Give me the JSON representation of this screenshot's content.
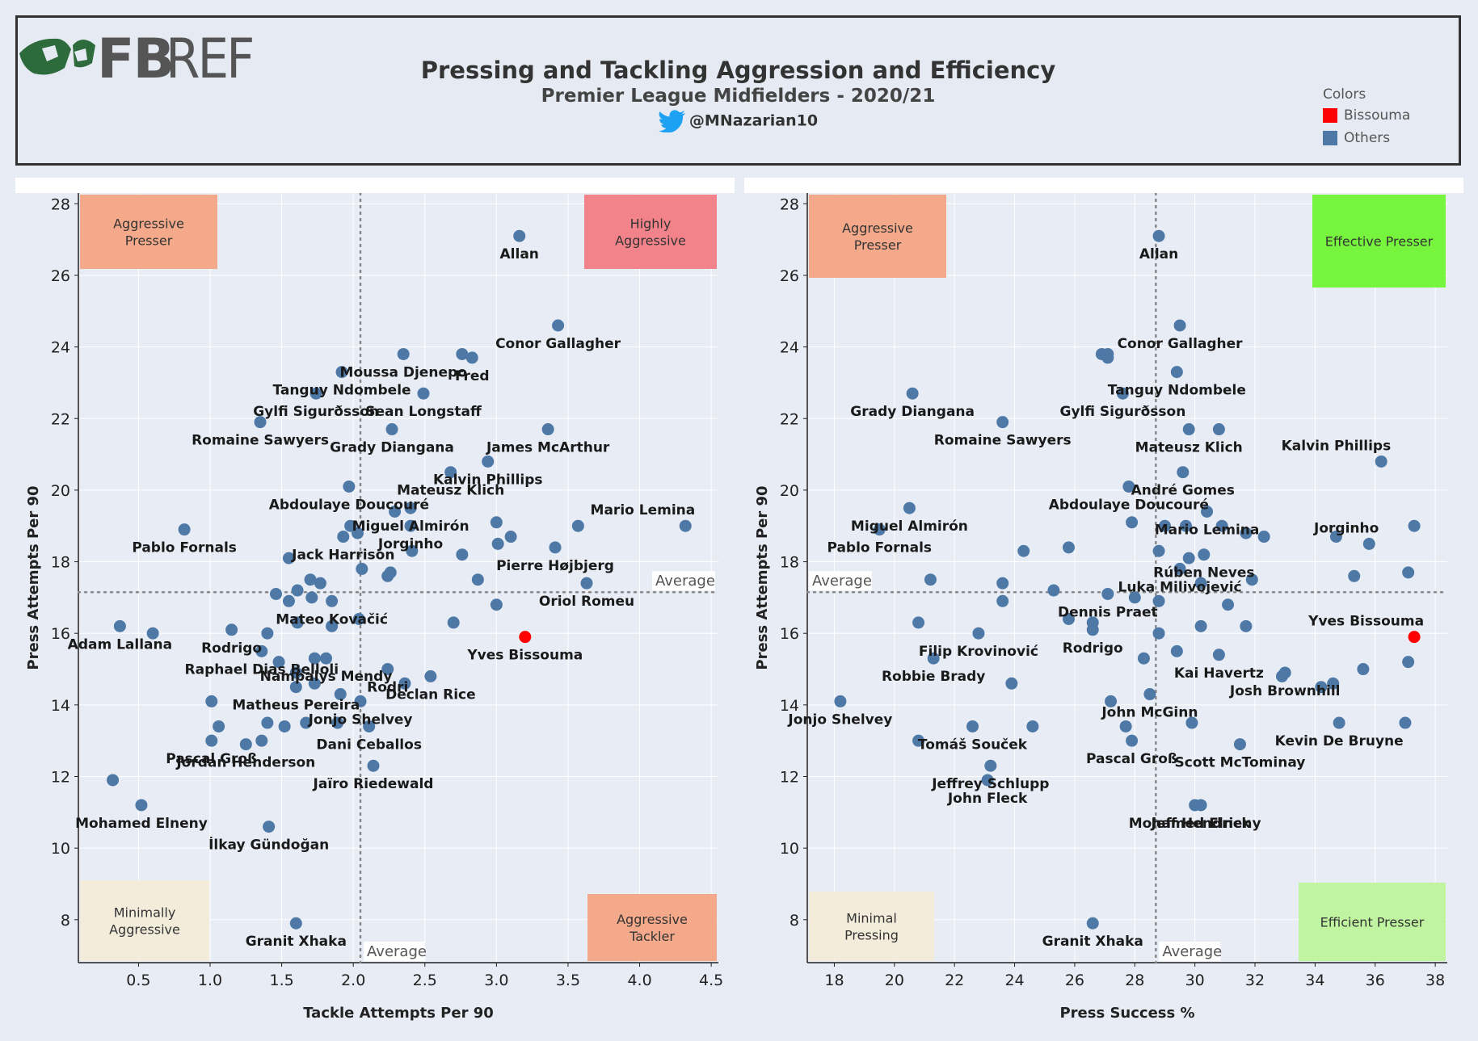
{
  "header": {
    "logo_text": "FBREF",
    "title": "Pressing and Tackling Aggression and Efficiency",
    "subtitle": "Premier League Midfielders - 2020/21",
    "handle": "@MNazarian10"
  },
  "legend": {
    "title": "Colors",
    "items": [
      {
        "label": "Bissouma",
        "color": "#ff0000"
      },
      {
        "label": "Others",
        "color": "#4e79a7"
      }
    ]
  },
  "colors": {
    "dot": "#4e79a7",
    "highlight": "#ff0000",
    "quad_orange": "#f4a98a",
    "quad_red": "#f3838a",
    "quad_cream": "#f3ecdb",
    "quad_green": "#77f43d",
    "quad_lightgreen": "#c0f4a0"
  },
  "chart_data": [
    {
      "type": "scatter",
      "xlabel": "Tackle Attempts Per 90",
      "ylabel": "Press Attempts Per 90",
      "xlim": [
        0.08,
        4.55
      ],
      "ylim": [
        6.8,
        28.3
      ],
      "xticks": [
        0.5,
        1.0,
        1.5,
        2.0,
        2.5,
        3.0,
        3.5,
        4.0,
        4.5
      ],
      "xtick_labels": [
        "0.5",
        "1.0",
        "1.5",
        "2.0",
        "2.5",
        "3.0",
        "3.5",
        "4.0",
        "4.5"
      ],
      "yticks": [
        8,
        10,
        12,
        14,
        16,
        18,
        20,
        22,
        24,
        26,
        28
      ],
      "avg_x": 2.05,
      "avg_y": 17.15,
      "avg_label": "Average",
      "quadrant_boxes": [
        {
          "text": [
            "Aggressive",
            "Presser"
          ],
          "corner": "top-left",
          "color": "quad_orange"
        },
        {
          "text": [
            "Highly",
            "Aggressive"
          ],
          "corner": "top-right",
          "color": "quad_red"
        },
        {
          "text": [
            "Minimally",
            "Aggressive"
          ],
          "corner": "bottom-left",
          "color": "quad_cream"
        },
        {
          "text": [
            "Aggressive",
            "Tackler"
          ],
          "corner": "bottom-right",
          "color": "quad_orange"
        }
      ],
      "points": [
        {
          "x": 3.16,
          "y": 27.1,
          "label": "Allan"
        },
        {
          "x": 3.43,
          "y": 24.6,
          "label": "Conor Gallagher"
        },
        {
          "x": 2.35,
          "y": 23.8,
          "label": "Moussa Djenepo"
        },
        {
          "x": 2.76,
          "y": 23.8,
          "label": ""
        },
        {
          "x": 2.83,
          "y": 23.7,
          "label": "Fred"
        },
        {
          "x": 1.92,
          "y": 23.3,
          "label": "Tanguy Ndombele"
        },
        {
          "x": 1.74,
          "y": 22.7,
          "label": "Gylfi Sigurðsson"
        },
        {
          "x": 2.49,
          "y": 22.7,
          "label": "Sean Longstaff"
        },
        {
          "x": 1.35,
          "y": 21.9,
          "label": "Romaine Sawyers"
        },
        {
          "x": 2.27,
          "y": 21.7,
          "label": "Grady Diangana"
        },
        {
          "x": 3.36,
          "y": 21.7,
          "label": "James McArthur"
        },
        {
          "x": 2.94,
          "y": 20.8,
          "label": "Kalvin Phillips"
        },
        {
          "x": 2.68,
          "y": 20.5,
          "label": "Mateusz Klich"
        },
        {
          "x": 1.97,
          "y": 20.1,
          "label": "Abdoulaye Doucouré"
        },
        {
          "x": 2.29,
          "y": 19.4,
          "label": ""
        },
        {
          "x": 2.4,
          "y": 19.5,
          "label": "Miguel Almirón"
        },
        {
          "x": 4.32,
          "y": 19.0,
          "label": "Mario Lemina"
        },
        {
          "x": 3.0,
          "y": 19.1,
          "label": ""
        },
        {
          "x": 3.57,
          "y": 19.0,
          "label": ""
        },
        {
          "x": 2.4,
          "y": 19.0,
          "label": "Jorginho"
        },
        {
          "x": 1.98,
          "y": 19.0,
          "label": ""
        },
        {
          "x": 0.82,
          "y": 18.9,
          "label": "Pablo Fornals"
        },
        {
          "x": 2.03,
          "y": 18.8,
          "label": ""
        },
        {
          "x": 1.93,
          "y": 18.7,
          "label": "Jack Harrison"
        },
        {
          "x": 3.1,
          "y": 18.7,
          "label": ""
        },
        {
          "x": 3.01,
          "y": 18.5,
          "label": ""
        },
        {
          "x": 3.41,
          "y": 18.4,
          "label": "Pierre Højbjerg"
        },
        {
          "x": 2.41,
          "y": 18.3,
          "label": ""
        },
        {
          "x": 2.76,
          "y": 18.2,
          "label": ""
        },
        {
          "x": 1.55,
          "y": 18.1,
          "label": ""
        },
        {
          "x": 2.06,
          "y": 17.8,
          "label": ""
        },
        {
          "x": 2.26,
          "y": 17.7,
          "label": ""
        },
        {
          "x": 2.24,
          "y": 17.6,
          "label": ""
        },
        {
          "x": 2.87,
          "y": 17.5,
          "label": ""
        },
        {
          "x": 1.7,
          "y": 17.5,
          "label": ""
        },
        {
          "x": 1.77,
          "y": 17.4,
          "label": ""
        },
        {
          "x": 3.63,
          "y": 17.4,
          "label": "Oriol Romeu"
        },
        {
          "x": 1.61,
          "y": 17.2,
          "label": ""
        },
        {
          "x": 1.46,
          "y": 17.1,
          "label": ""
        },
        {
          "x": 1.71,
          "y": 17.0,
          "label": ""
        },
        {
          "x": 1.55,
          "y": 16.9,
          "label": ""
        },
        {
          "x": 1.85,
          "y": 16.9,
          "label": "Mateo Kovačić"
        },
        {
          "x": 3.0,
          "y": 16.8,
          "label": ""
        },
        {
          "x": 2.04,
          "y": 16.4,
          "label": ""
        },
        {
          "x": 1.61,
          "y": 16.3,
          "label": ""
        },
        {
          "x": 2.7,
          "y": 16.3,
          "label": ""
        },
        {
          "x": 0.37,
          "y": 16.2,
          "label": "Adam Lallana"
        },
        {
          "x": 1.85,
          "y": 16.2,
          "label": ""
        },
        {
          "x": 1.15,
          "y": 16.1,
          "label": "Rodrigo"
        },
        {
          "x": 0.6,
          "y": 16.0,
          "label": ""
        },
        {
          "x": 1.4,
          "y": 16.0,
          "label": ""
        },
        {
          "x": 3.2,
          "y": 15.9,
          "label": "Yves Bissouma",
          "highlight": true
        },
        {
          "x": 1.36,
          "y": 15.5,
          "label": "Raphael Dias Belloli"
        },
        {
          "x": 1.73,
          "y": 15.3,
          "label": ""
        },
        {
          "x": 1.81,
          "y": 15.3,
          "label": "Nampalys Mendy"
        },
        {
          "x": 1.48,
          "y": 15.2,
          "label": ""
        },
        {
          "x": 2.24,
          "y": 15.0,
          "label": "Rodri"
        },
        {
          "x": 1.6,
          "y": 14.9,
          "label": ""
        },
        {
          "x": 2.54,
          "y": 14.8,
          "label": "Declan Rice"
        },
        {
          "x": 1.73,
          "y": 14.6,
          "label": ""
        },
        {
          "x": 2.36,
          "y": 14.6,
          "label": ""
        },
        {
          "x": 1.6,
          "y": 14.5,
          "label": "Matheus Pereira"
        },
        {
          "x": 1.91,
          "y": 14.3,
          "label": ""
        },
        {
          "x": 2.05,
          "y": 14.1,
          "label": "Jonjo Shelvey"
        },
        {
          "x": 1.01,
          "y": 14.1,
          "label": ""
        },
        {
          "x": 1.4,
          "y": 13.5,
          "label": ""
        },
        {
          "x": 1.67,
          "y": 13.5,
          "label": ""
        },
        {
          "x": 1.89,
          "y": 13.5,
          "label": ""
        },
        {
          "x": 1.06,
          "y": 13.4,
          "label": ""
        },
        {
          "x": 1.52,
          "y": 13.4,
          "label": ""
        },
        {
          "x": 2.11,
          "y": 13.4,
          "label": "Dani Ceballos"
        },
        {
          "x": 1.01,
          "y": 13.0,
          "label": "Pascal Groß"
        },
        {
          "x": 1.36,
          "y": 13.0,
          "label": ""
        },
        {
          "x": 1.25,
          "y": 12.9,
          "label": "Jordan Henderson"
        },
        {
          "x": 2.14,
          "y": 12.3,
          "label": "Jaïro Riedewald"
        },
        {
          "x": 0.32,
          "y": 11.9,
          "label": ""
        },
        {
          "x": 0.52,
          "y": 11.2,
          "label": "Mohamed Elneny"
        },
        {
          "x": 1.41,
          "y": 10.6,
          "label": "İlkay Gündoğan"
        },
        {
          "x": 1.6,
          "y": 7.9,
          "label": "Granit Xhaka"
        }
      ]
    },
    {
      "type": "scatter",
      "xlabel": "Press Success %",
      "ylabel": "Press Attempts Per 90",
      "xlim": [
        17.1,
        38.4
      ],
      "ylim": [
        6.8,
        28.3
      ],
      "xticks": [
        18,
        20,
        22,
        24,
        26,
        28,
        30,
        32,
        34,
        36,
        38
      ],
      "xtick_labels": [
        "18",
        "20",
        "22",
        "24",
        "26",
        "28",
        "30",
        "32",
        "34",
        "36",
        "38"
      ],
      "yticks": [
        8,
        10,
        12,
        14,
        16,
        18,
        20,
        22,
        24,
        26,
        28
      ],
      "avg_x": 28.7,
      "avg_y": 17.15,
      "avg_label": "Average",
      "quadrant_boxes": [
        {
          "text": [
            "Aggressive",
            "Presser"
          ],
          "corner": "top-left",
          "color": "quad_orange"
        },
        {
          "text": [
            "Effective Presser"
          ],
          "corner": "top-right",
          "color": "quad_green"
        },
        {
          "text": [
            "Minimal",
            "Pressing"
          ],
          "corner": "bottom-left",
          "color": "quad_cream"
        },
        {
          "text": [
            "Efficient Presser"
          ],
          "corner": "bottom-right",
          "color": "quad_lightgreen"
        }
      ],
      "points": [
        {
          "x": 28.8,
          "y": 27.1,
          "label": "Allan"
        },
        {
          "x": 29.5,
          "y": 24.6,
          "label": "Conor Gallagher"
        },
        {
          "x": 26.9,
          "y": 23.8,
          "label": ""
        },
        {
          "x": 27.1,
          "y": 23.8,
          "label": ""
        },
        {
          "x": 27.1,
          "y": 23.7,
          "label": ""
        },
        {
          "x": 29.4,
          "y": 23.3,
          "label": "Tanguy Ndombele"
        },
        {
          "x": 20.6,
          "y": 22.7,
          "label": "Grady Diangana"
        },
        {
          "x": 27.6,
          "y": 22.7,
          "label": "Gylfi Sigurðsson"
        },
        {
          "x": 23.6,
          "y": 21.9,
          "label": "Romaine Sawyers"
        },
        {
          "x": 29.8,
          "y": 21.7,
          "label": "Mateusz Klich"
        },
        {
          "x": 30.8,
          "y": 21.7,
          "label": ""
        },
        {
          "x": 36.2,
          "y": 20.8,
          "label": "Kalvin Phillips"
        },
        {
          "x": 29.6,
          "y": 20.5,
          "label": "André Gomes"
        },
        {
          "x": 27.8,
          "y": 20.1,
          "label": "Abdoulaye Doucouré"
        },
        {
          "x": 20.5,
          "y": 19.5,
          "label": "Miguel Almirón"
        },
        {
          "x": 30.4,
          "y": 19.4,
          "label": "Mario Lemina"
        },
        {
          "x": 27.9,
          "y": 19.1,
          "label": ""
        },
        {
          "x": 29.0,
          "y": 19.0,
          "label": ""
        },
        {
          "x": 29.7,
          "y": 19.0,
          "label": ""
        },
        {
          "x": 30.9,
          "y": 19.0,
          "label": ""
        },
        {
          "x": 37.3,
          "y": 19.0,
          "label": ""
        },
        {
          "x": 19.5,
          "y": 18.9,
          "label": "Pablo Fornals"
        },
        {
          "x": 31.7,
          "y": 18.8,
          "label": ""
        },
        {
          "x": 32.3,
          "y": 18.7,
          "label": ""
        },
        {
          "x": 34.7,
          "y": 18.7,
          "label": ""
        },
        {
          "x": 35.8,
          "y": 18.5,
          "label": "Jorginho"
        },
        {
          "x": 25.8,
          "y": 18.4,
          "label": ""
        },
        {
          "x": 24.3,
          "y": 18.3,
          "label": ""
        },
        {
          "x": 28.8,
          "y": 18.3,
          "label": ""
        },
        {
          "x": 30.3,
          "y": 18.2,
          "label": "Rúben Neves"
        },
        {
          "x": 29.8,
          "y": 18.1,
          "label": ""
        },
        {
          "x": 29.5,
          "y": 17.8,
          "label": "Luka Milivojević"
        },
        {
          "x": 37.1,
          "y": 17.7,
          "label": ""
        },
        {
          "x": 35.3,
          "y": 17.6,
          "label": ""
        },
        {
          "x": 21.2,
          "y": 17.5,
          "label": ""
        },
        {
          "x": 31.9,
          "y": 17.5,
          "label": ""
        },
        {
          "x": 23.6,
          "y": 17.4,
          "label": ""
        },
        {
          "x": 30.2,
          "y": 17.4,
          "label": ""
        },
        {
          "x": 25.3,
          "y": 17.2,
          "label": ""
        },
        {
          "x": 27.1,
          "y": 17.1,
          "label": "Dennis Praet"
        },
        {
          "x": 28.0,
          "y": 17.0,
          "label": ""
        },
        {
          "x": 23.6,
          "y": 16.9,
          "label": ""
        },
        {
          "x": 28.8,
          "y": 16.9,
          "label": ""
        },
        {
          "x": 31.1,
          "y": 16.8,
          "label": ""
        },
        {
          "x": 25.8,
          "y": 16.4,
          "label": ""
        },
        {
          "x": 20.8,
          "y": 16.3,
          "label": ""
        },
        {
          "x": 26.6,
          "y": 16.3,
          "label": ""
        },
        {
          "x": 30.2,
          "y": 16.2,
          "label": ""
        },
        {
          "x": 31.7,
          "y": 16.2,
          "label": ""
        },
        {
          "x": 26.6,
          "y": 16.1,
          "label": "Rodrigo"
        },
        {
          "x": 22.8,
          "y": 16.0,
          "label": "Filip Krovinović"
        },
        {
          "x": 28.8,
          "y": 16.0,
          "label": ""
        },
        {
          "x": 37.3,
          "y": 15.9,
          "label": "Yves Bissouma",
          "highlight": true
        },
        {
          "x": 29.4,
          "y": 15.5,
          "label": ""
        },
        {
          "x": 30.8,
          "y": 15.4,
          "label": "Kai Havertz"
        },
        {
          "x": 21.3,
          "y": 15.3,
          "label": "Robbie Brady"
        },
        {
          "x": 28.3,
          "y": 15.3,
          "label": ""
        },
        {
          "x": 37.1,
          "y": 15.2,
          "label": ""
        },
        {
          "x": 35.6,
          "y": 15.0,
          "label": ""
        },
        {
          "x": 33.0,
          "y": 14.9,
          "label": "Josh Brownhill"
        },
        {
          "x": 32.9,
          "y": 14.8,
          "label": ""
        },
        {
          "x": 23.9,
          "y": 14.6,
          "label": ""
        },
        {
          "x": 34.6,
          "y": 14.6,
          "label": ""
        },
        {
          "x": 34.2,
          "y": 14.5,
          "label": ""
        },
        {
          "x": 28.5,
          "y": 14.3,
          "label": "John McGinn"
        },
        {
          "x": 18.2,
          "y": 14.1,
          "label": "Jonjo Shelvey"
        },
        {
          "x": 27.2,
          "y": 14.1,
          "label": ""
        },
        {
          "x": 29.9,
          "y": 13.5,
          "label": ""
        },
        {
          "x": 34.8,
          "y": 13.5,
          "label": "Kevin De Bruyne"
        },
        {
          "x": 37.0,
          "y": 13.5,
          "label": ""
        },
        {
          "x": 22.6,
          "y": 13.4,
          "label": "Tomáš Souček"
        },
        {
          "x": 24.6,
          "y": 13.4,
          "label": ""
        },
        {
          "x": 27.7,
          "y": 13.4,
          "label": ""
        },
        {
          "x": 20.8,
          "y": 13.0,
          "label": ""
        },
        {
          "x": 27.9,
          "y": 13.0,
          "label": "Pascal Groß"
        },
        {
          "x": 31.5,
          "y": 12.9,
          "label": "Scott McTominay"
        },
        {
          "x": 23.2,
          "y": 12.3,
          "label": "Jeffrey Schlupp"
        },
        {
          "x": 23.1,
          "y": 11.9,
          "label": "John Fleck"
        },
        {
          "x": 30.2,
          "y": 11.2,
          "label": "Jeff Hendrick"
        },
        {
          "x": 26.6,
          "y": 7.9,
          "label": "Granit Xhaka"
        },
        {
          "x": 30.0,
          "y": 11.2,
          "label": "Mohamed Elneny"
        }
      ]
    }
  ]
}
